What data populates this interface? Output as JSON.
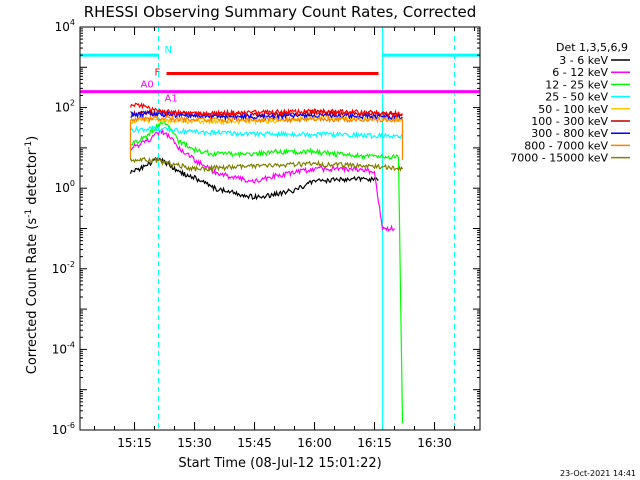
{
  "chart_data": {
    "type": "line",
    "title": "RHESSI Observing Summary Count Rates, Corrected",
    "xlabel": "Start Time (08-Jul-12 15:01:22)",
    "ylabel_main": "Corrected Count Rate (s",
    "ylabel_sup1": "-1",
    "ylabel_mid": " detector",
    "ylabel_sup2": "-1",
    "ylabel_end": ")",
    "timestamp": "23-Oct-2021 14:41",
    "yscale": "log",
    "ylim": [
      1e-06,
      10000.0
    ],
    "xlim": [
      "15:01:22",
      "16:41:22"
    ],
    "xticks": [
      "15:15",
      "15:30",
      "15:45",
      "16:00",
      "16:15",
      "16:30"
    ],
    "ytick_mantissa": [
      "10",
      "10",
      "10",
      "10",
      "10",
      "10"
    ],
    "ytick_exp": [
      "-6",
      "-4",
      "-2",
      "0",
      "2",
      "4"
    ],
    "legend_title": "Det 1,3,5,6,9",
    "legend_position": "right",
    "series": [
      {
        "name": "3 - 6 keV",
        "color": "#000000",
        "x": [
          "15:14",
          "15:16",
          "15:18",
          "15:20",
          "15:22",
          "15:24",
          "15:26",
          "15:30",
          "15:35",
          "15:40",
          "15:45",
          "15:50",
          "15:55",
          "16:00",
          "16:05",
          "16:10",
          "16:15",
          "16:16"
        ],
        "y": [
          2.5,
          3.0,
          3.5,
          5.0,
          5.0,
          3.5,
          2.5,
          1.8,
          1.0,
          0.75,
          0.6,
          0.7,
          0.9,
          1.5,
          1.6,
          1.7,
          1.6,
          1.6
        ]
      },
      {
        "name": "6 - 12 keV",
        "color": "#ff00ff",
        "x": [
          "15:14",
          "15:16",
          "15:18",
          "15:20",
          "15:22",
          "15:24",
          "15:26",
          "15:30",
          "15:35",
          "15:40",
          "15:45",
          "15:50",
          "15:55",
          "16:00",
          "16:05",
          "16:10",
          "16:15",
          "16:17",
          "16:20"
        ],
        "y": [
          10,
          12,
          14,
          20,
          25,
          18,
          10,
          5,
          2.5,
          1.8,
          1.5,
          2.0,
          2.5,
          3.0,
          3.0,
          3.0,
          2.5,
          0.1,
          0.1
        ]
      },
      {
        "name": "12 - 25 keV",
        "color": "#00ff00",
        "x": [
          "15:14",
          "15:16",
          "15:18",
          "15:20",
          "15:22",
          "15:24",
          "15:26",
          "15:30",
          "15:35",
          "15:40",
          "15:45",
          "15:50",
          "15:55",
          "16:00",
          "16:05",
          "16:10",
          "16:15",
          "16:20",
          "16:21",
          "16:22"
        ],
        "y": [
          12,
          15,
          20,
          30,
          45,
          30,
          15,
          9,
          7,
          7,
          7,
          8,
          8,
          8,
          7,
          6.5,
          6,
          6,
          6,
          1.5e-06
        ]
      },
      {
        "name": "25 - 50 keV",
        "color": "#00ffff",
        "x": [
          "15:14",
          "15:20",
          "15:30",
          "15:45",
          "16:00",
          "16:15",
          "16:22"
        ],
        "y": [
          28,
          30,
          25,
          22,
          22,
          20,
          20
        ]
      },
      {
        "name": "50 - 100 keV",
        "color": "#ffc800",
        "x": [
          "15:14",
          "15:20",
          "15:30",
          "15:45",
          "16:00",
          "16:15",
          "16:22"
        ],
        "y": [
          45,
          50,
          45,
          45,
          55,
          55,
          50
        ]
      },
      {
        "name": "100 - 300 keV",
        "color": "#bb0000",
        "x": [
          "15:14",
          "15:20",
          "15:30",
          "15:45",
          "16:00",
          "16:15",
          "16:22"
        ],
        "y": [
          70,
          75,
          70,
          65,
          75,
          70,
          70
        ]
      },
      {
        "name": "300 - 800 keV",
        "color": "#0000ff",
        "x": [
          "15:14",
          "15:20",
          "15:30",
          "15:45",
          "16:00",
          "16:15",
          "16:22"
        ],
        "y": [
          65,
          70,
          62,
          58,
          65,
          60,
          58
        ]
      },
      {
        "name": "800 - 7000 keV",
        "color": "#ff8000",
        "x": [
          "15:14",
          "15:14",
          "15:20",
          "15:30",
          "15:45",
          "16:00",
          "16:15",
          "16:22",
          "16:22"
        ],
        "y": [
          5,
          50,
          55,
          50,
          50,
          52,
          50,
          50,
          5
        ]
      },
      {
        "name": "7000 - 15000 keV",
        "color": "#808000",
        "x": [
          "15:14",
          "15:20",
          "15:30",
          "15:45",
          "16:00",
          "16:15",
          "16:22"
        ],
        "y": [
          5,
          5,
          3,
          3.5,
          4,
          3.5,
          3
        ]
      }
    ],
    "extra_series": [
      {
        "color": "#ff0000",
        "x": [
          "15:14",
          "15:16",
          "15:18",
          "15:20",
          "15:22",
          "15:25",
          "15:30",
          "15:45",
          "16:00",
          "16:15",
          "16:20",
          "16:22"
        ],
        "y": [
          110,
          120,
          100,
          85,
          80,
          75,
          70,
          75,
          80,
          75,
          70,
          70
        ]
      }
    ],
    "annotations": {
      "attenuator_label": "A0",
      "attenuator1_label": "A1",
      "flare_label": "F",
      "night_label": "N"
    },
    "bars": [
      {
        "label_key": "night_label",
        "color": "#00ffff",
        "level": 2000,
        "segments": [
          [
            "15:01:22",
            "15:21"
          ],
          [
            "16:17",
            "16:41:22"
          ]
        ]
      },
      {
        "label_key": "flare_label",
        "color": "#ff0000",
        "level": 700,
        "segments": [
          [
            "15:23",
            "16:16"
          ]
        ]
      },
      {
        "label_key": "attenuator1_label",
        "color": "#ff00ff",
        "level": 250,
        "segments": [
          [
            "15:01:22",
            "15:21"
          ],
          [
            "15:21",
            "16:41:22"
          ]
        ]
      }
    ],
    "night_lines_solid": [
      "15:01:22",
      "16:17"
    ],
    "night_lines_dashed": [
      "15:21",
      "16:35"
    ],
    "night_line_color": "#00ffff"
  }
}
